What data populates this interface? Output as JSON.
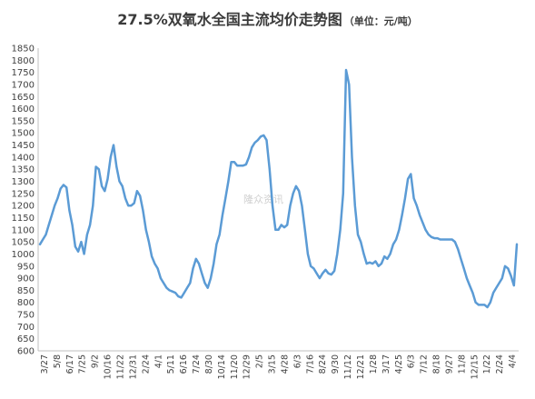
{
  "chart_data": {
    "type": "line",
    "title": "27.5%双氧水全国主流均价走势图",
    "unit_note": "（单位：元/吨）",
    "ylim": [
      600,
      1850
    ],
    "yticks": [
      600,
      650,
      700,
      750,
      800,
      850,
      900,
      950,
      1000,
      1050,
      1100,
      1150,
      1200,
      1250,
      1300,
      1350,
      1400,
      1450,
      1500,
      1550,
      1600,
      1650,
      1700,
      1750,
      1800,
      1850
    ],
    "x_tick_labels": [
      "3/27",
      "5/8",
      "6/17",
      "7/25",
      "9/2",
      "10/16",
      "11/22",
      "12/31",
      "2/24",
      "4/1",
      "5/11",
      "6/16",
      "7/24",
      "8/30",
      "10/14",
      "11/20",
      "12/29",
      "2/5",
      "3/15",
      "4/28",
      "6/3",
      "7/16",
      "8/24",
      "9/30",
      "11/12",
      "12/21",
      "1/28",
      "3/17",
      "4/25",
      "6/3",
      "7/12",
      "8/18",
      "9/27",
      "11/8",
      "12/15",
      "1/22",
      "2/24",
      "4/4"
    ],
    "grid": false,
    "legend": "none",
    "line_color": "#5b9bd5",
    "series": [
      {
        "values": [
          1040,
          1060,
          1080,
          1120,
          1160,
          1200,
          1230,
          1270,
          1285,
          1275,
          1180,
          1120,
          1030,
          1010,
          1050,
          1000,
          1080,
          1120,
          1200,
          1360,
          1350,
          1280,
          1260,
          1310,
          1400,
          1450,
          1360,
          1300,
          1280,
          1230,
          1200,
          1200,
          1210,
          1260,
          1240,
          1180,
          1100,
          1050,
          990,
          960,
          940,
          900,
          880,
          860,
          850,
          845,
          840,
          825,
          820,
          840,
          860,
          880,
          940,
          980,
          960,
          920,
          880,
          860,
          900,
          960,
          1040,
          1080,
          1160,
          1230,
          1300,
          1380,
          1380,
          1365,
          1365,
          1365,
          1370,
          1400,
          1440,
          1460,
          1470,
          1485,
          1490,
          1470,
          1350,
          1200,
          1100,
          1100,
          1120,
          1110,
          1120,
          1200,
          1250,
          1280,
          1260,
          1200,
          1100,
          1000,
          950,
          940,
          920,
          900,
          920,
          935,
          920,
          915,
          930,
          1000,
          1100,
          1250,
          1760,
          1700,
          1400,
          1200,
          1080,
          1050,
          1000,
          960,
          965,
          960,
          970,
          950,
          960,
          990,
          980,
          1000,
          1040,
          1060,
          1100,
          1160,
          1230,
          1310,
          1330,
          1230,
          1200,
          1160,
          1130,
          1100,
          1080,
          1070,
          1065,
          1065,
          1060,
          1060,
          1060,
          1060,
          1060,
          1050,
          1020,
          980,
          940,
          900,
          870,
          840,
          800,
          790,
          790,
          790,
          780,
          800,
          840,
          860,
          880,
          900,
          950,
          940,
          910,
          870,
          1040
        ]
      }
    ]
  },
  "watermark": "隆众资讯"
}
